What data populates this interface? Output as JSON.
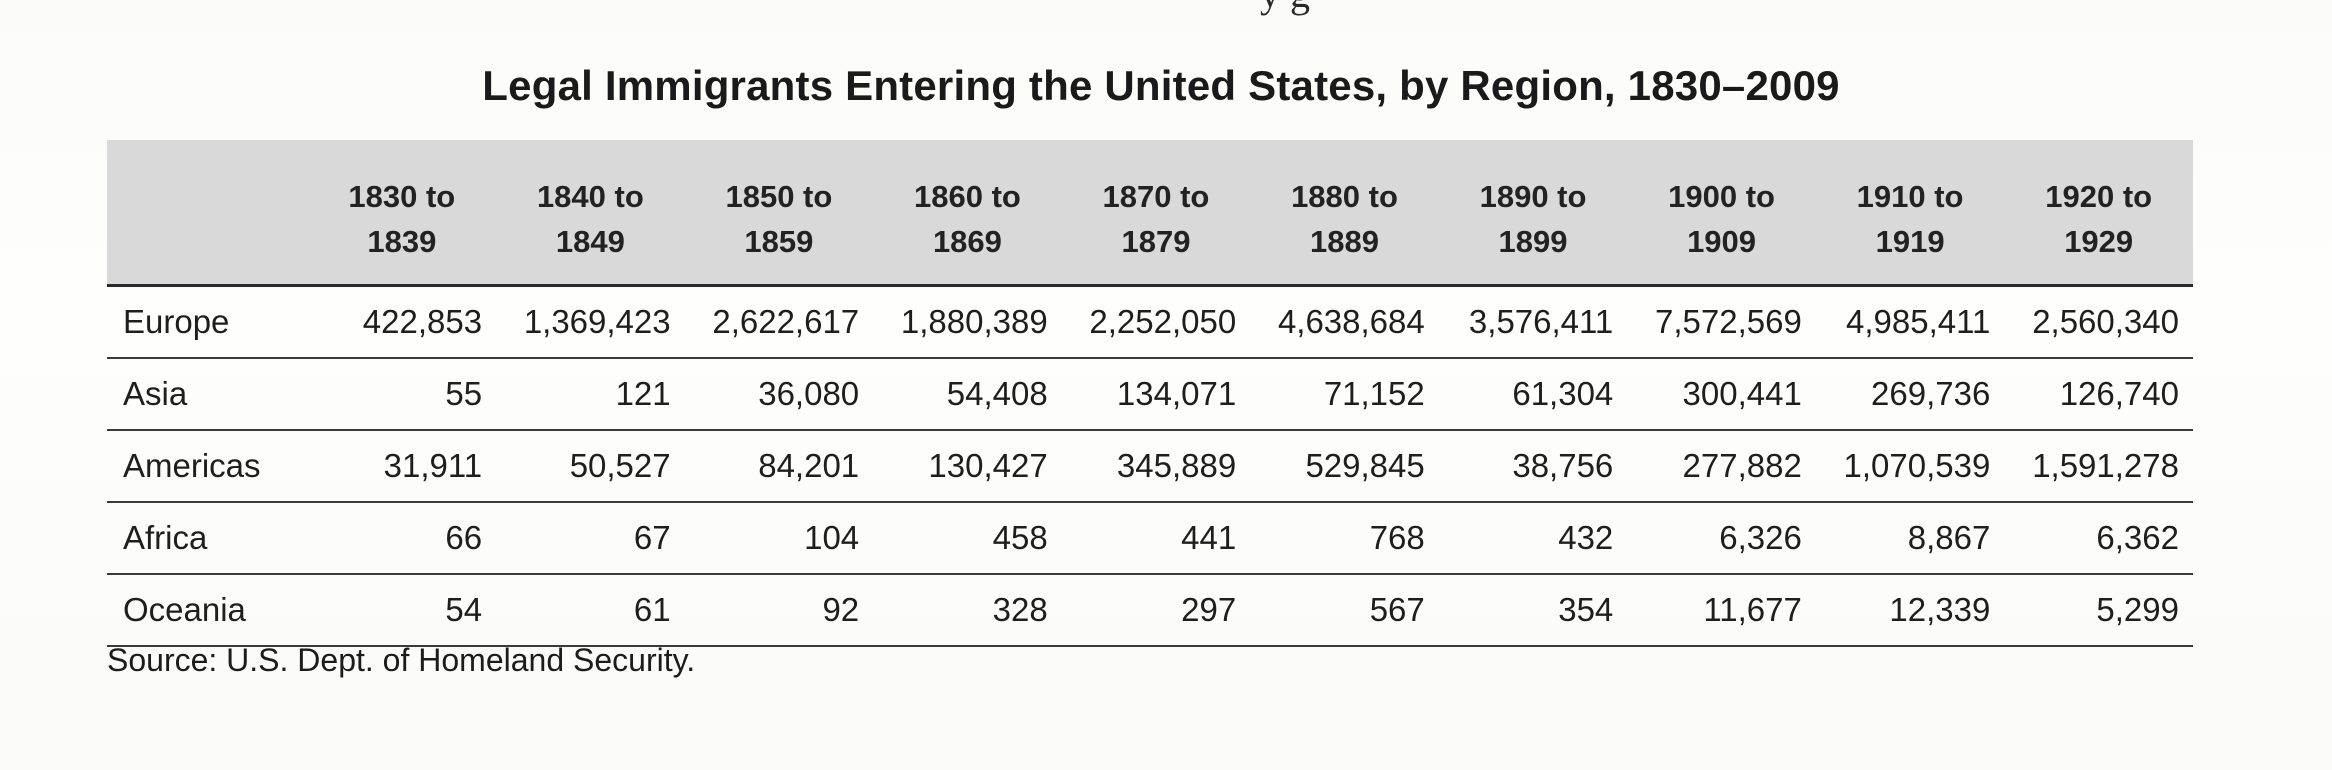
{
  "top_fragment": "y   g",
  "title": "Legal Immigrants Entering the United States, by Region, 1830–2009",
  "table": {
    "columns": [
      {
        "line1": "1830 to",
        "line2": "1839"
      },
      {
        "line1": "1840 to",
        "line2": "1849"
      },
      {
        "line1": "1850 to",
        "line2": "1859"
      },
      {
        "line1": "1860 to",
        "line2": "1869"
      },
      {
        "line1": "1870 to",
        "line2": "1879"
      },
      {
        "line1": "1880 to",
        "line2": "1889"
      },
      {
        "line1": "1890 to",
        "line2": "1899"
      },
      {
        "line1": "1900 to",
        "line2": "1909"
      },
      {
        "line1": "1910 to",
        "line2": "1919"
      },
      {
        "line1": "1920 to",
        "line2": "1929"
      }
    ],
    "rows": [
      {
        "region": "Europe",
        "values": [
          "422,853",
          "1,369,423",
          "2,622,617",
          "1,880,389",
          "2,252,050",
          "4,638,684",
          "3,576,411",
          "7,572,569",
          "4,985,411",
          "2,560,340"
        ]
      },
      {
        "region": "Asia",
        "values": [
          "55",
          "121",
          "36,080",
          "54,408",
          "134,071",
          "71,152",
          "61,304",
          "300,441",
          "269,736",
          "126,740"
        ]
      },
      {
        "region": "Americas",
        "values": [
          "31,911",
          "50,527",
          "84,201",
          "130,427",
          "345,889",
          "529,845",
          "38,756",
          "277,882",
          "1,070,539",
          "1,591,278"
        ]
      },
      {
        "region": "Africa",
        "values": [
          "66",
          "67",
          "104",
          "458",
          "441",
          "768",
          "432",
          "6,326",
          "8,867",
          "6,362"
        ]
      },
      {
        "region": "Oceania",
        "values": [
          "54",
          "61",
          "92",
          "328",
          "297",
          "567",
          "354",
          "11,677",
          "12,339",
          "5,299"
        ]
      }
    ]
  },
  "source": "Source: U.S. Dept. of Homeland Security."
}
